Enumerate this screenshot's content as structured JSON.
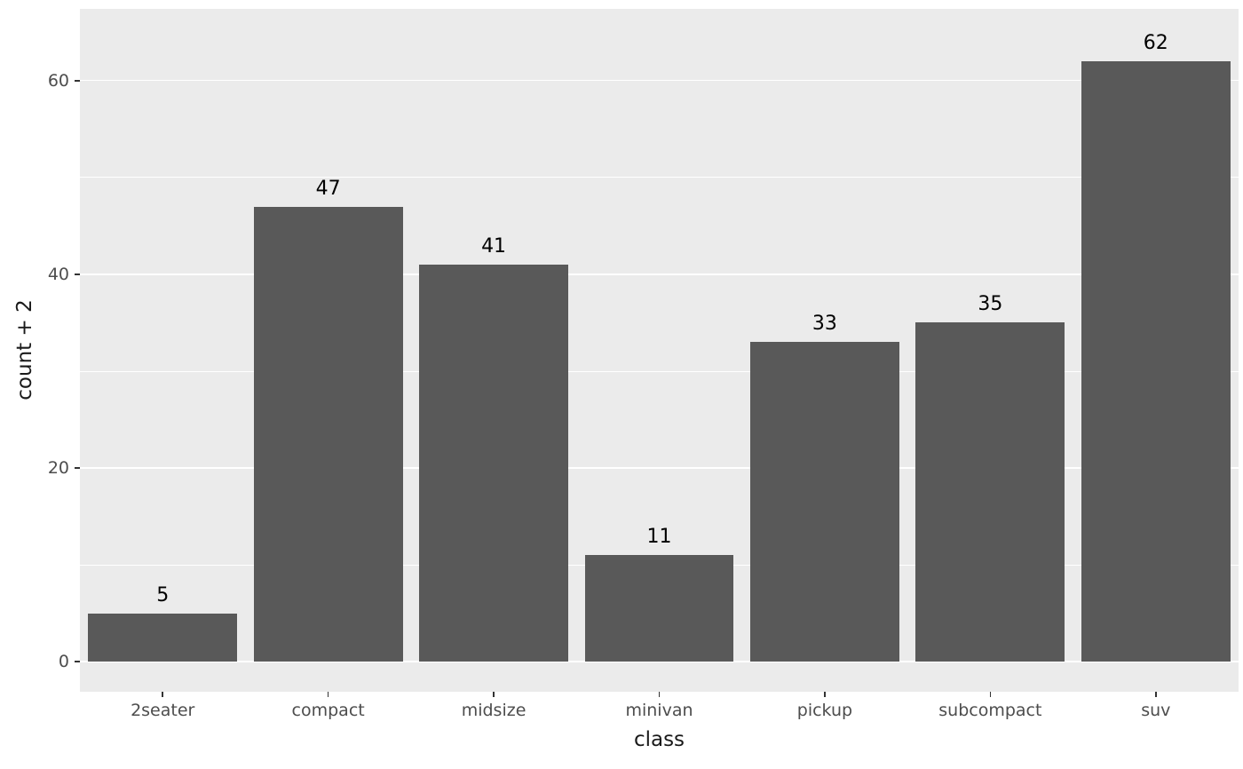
{
  "chart_data": {
    "type": "bar",
    "title": "",
    "xlabel": "class",
    "ylabel": "count + 2",
    "categories": [
      "2seater",
      "compact",
      "midsize",
      "minivan",
      "pickup",
      "subcompact",
      "suv"
    ],
    "values": [
      5,
      47,
      41,
      11,
      33,
      35,
      62
    ],
    "bar_labels": [
      "5",
      "47",
      "41",
      "11",
      "33",
      "35",
      "62"
    ],
    "ylim": [
      -3.1,
      67.4
    ],
    "yticks": [
      0,
      20,
      40,
      60
    ],
    "ytick_labels": [
      "0",
      "20",
      "40",
      "60"
    ],
    "minor_ticks": [
      10,
      30,
      50
    ],
    "grid": true,
    "legend": false,
    "bar_width_fraction": 0.9,
    "colors": {
      "background": "#FFFFFF",
      "panel": "#EBEBEB",
      "grid_major": "#FFFFFF",
      "grid_minor": "#FFFFFF",
      "bar": "#595959",
      "tick_label": "#4D4D4D",
      "axis_title": "#1A1A1A",
      "value_label": "#000000",
      "tick_mark": "#333333"
    }
  }
}
